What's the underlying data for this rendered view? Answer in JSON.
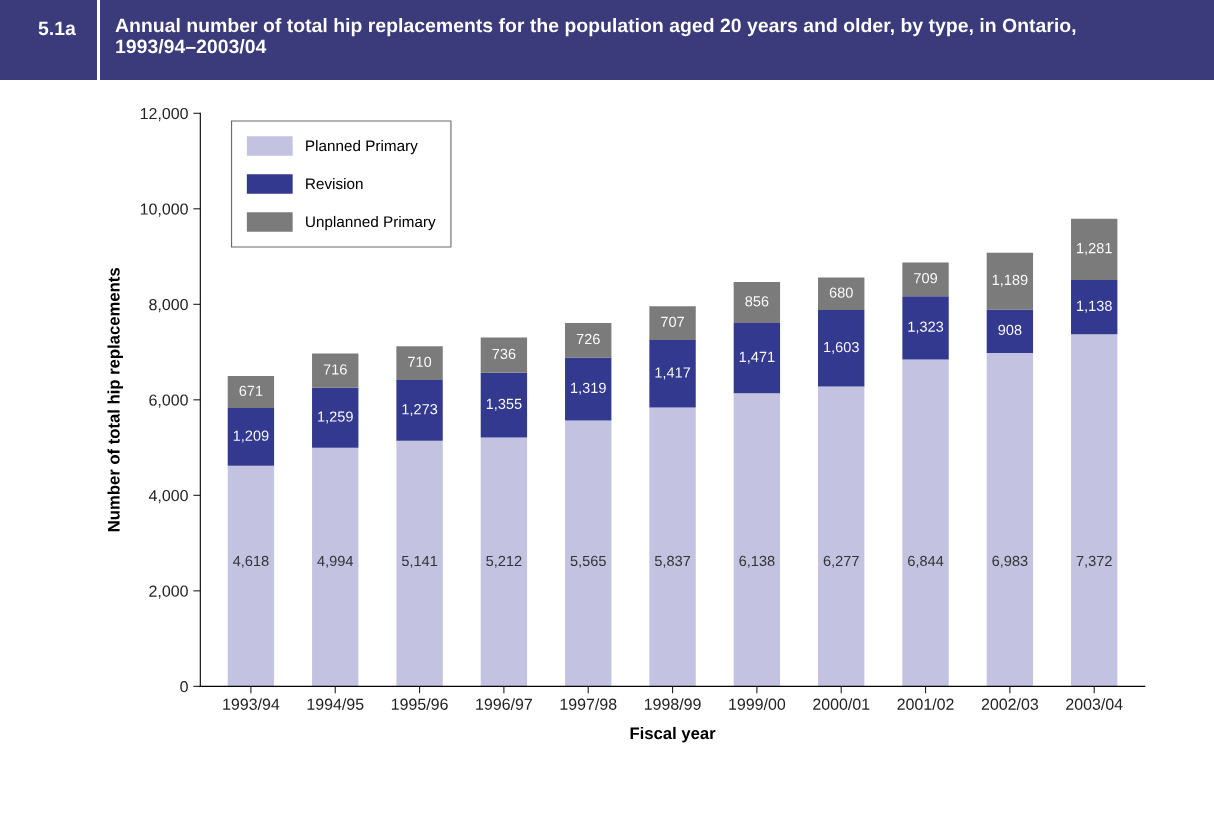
{
  "chart_data": {
    "type": "bar",
    "title": "Annual number of total hip replacements for the population aged 20 years and older, by type, in Ontario, 1993/94–2003/04",
    "annotations": [
      "5.1a"
    ],
    "xlabel": "Fiscal year",
    "ylabel": "Number of total hip replacements",
    "categories": [
      "1993/94",
      "1994/95",
      "1995/96",
      "1996/97",
      "1997/98",
      "1998/99",
      "1999/00",
      "2000/01",
      "2001/02",
      "2002/03",
      "2003/04"
    ],
    "stacked": true,
    "series": [
      {
        "name": "Planned Primary",
        "color": "#c4c2e1",
        "values": [
          4618,
          4994,
          5141,
          5212,
          5565,
          5837,
          6138,
          6277,
          6844,
          6983,
          7372
        ],
        "value_labels": [
          "4,618",
          "4,994",
          "5,141",
          "5,212",
          "5,565",
          "5,837",
          "6,138",
          "6,277",
          "6,844",
          "6,983",
          "7,372"
        ]
      },
      {
        "name": "Revision",
        "color": "#33398e",
        "values": [
          1209,
          1259,
          1273,
          1355,
          1319,
          1417,
          1471,
          1603,
          1323,
          908,
          1138
        ],
        "value_labels": [
          "1,209",
          "1,259",
          "1,273",
          "1,355",
          "1,319",
          "1,417",
          "1,471",
          "1,603",
          "1,323",
          "908",
          "1,138"
        ]
      },
      {
        "name": "Unplanned Primary",
        "color": "#7b7b7b",
        "values": [
          671,
          716,
          710,
          736,
          726,
          707,
          856,
          680,
          709,
          1189,
          1281
        ],
        "value_labels": [
          "671",
          "716",
          "710",
          "736",
          "726",
          "707",
          "856",
          "680",
          "709",
          "1,189",
          "1,281"
        ]
      }
    ],
    "ylim": [
      0,
      12000
    ],
    "yticks": [
      0,
      {
        "value": 2000,
        "label": "2,000"
      },
      {
        "value": 4000,
        "label": "4,000"
      },
      {
        "value": 6000,
        "label": "6,000"
      },
      {
        "value": 8000,
        "label": "8,000"
      },
      {
        "value": 10000,
        "label": "10,000"
      },
      {
        "value": 12000,
        "label": "12,000"
      }
    ],
    "legend": "top left"
  }
}
